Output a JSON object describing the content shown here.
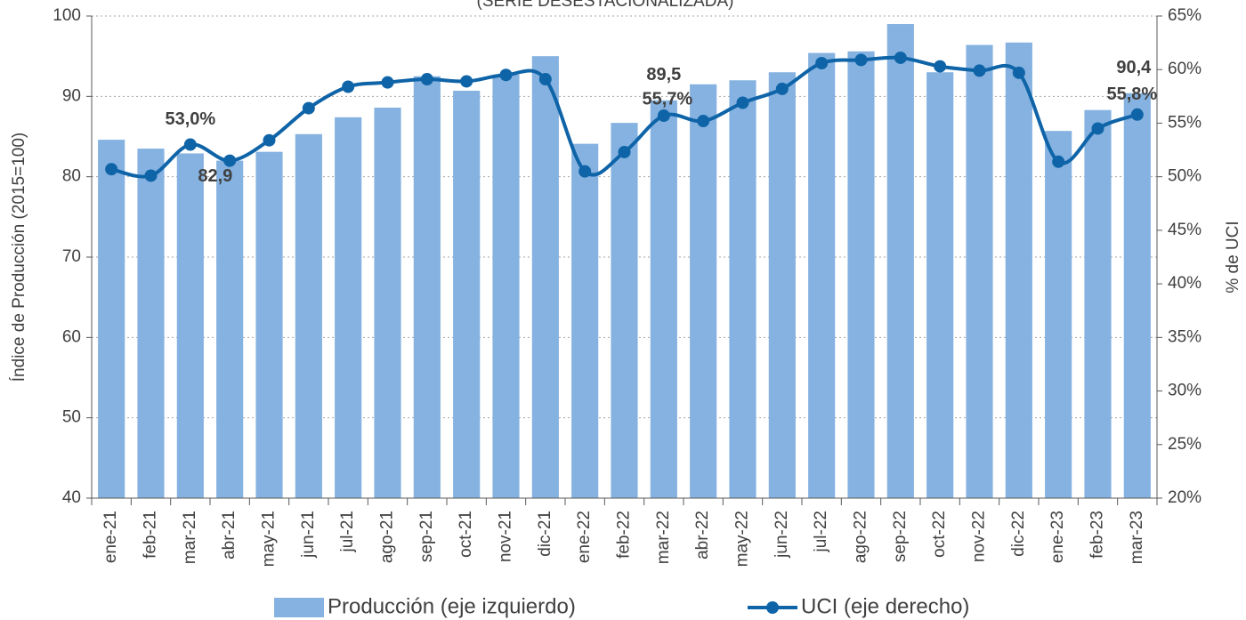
{
  "chart_data": {
    "type": "bar-line",
    "subtitle": "(SERIE DESESTACIONALIZADA)",
    "ylabel": "Índice de Producción (2015=100)",
    "y2label": "% de UCI",
    "categories": [
      "ene-21",
      "feb-21",
      "mar-21",
      "abr-21",
      "may-21",
      "jun-21",
      "jul-21",
      "ago-21",
      "sep-21",
      "oct-21",
      "nov-21",
      "dic-21",
      "ene-22",
      "feb-22",
      "mar-22",
      "abr-22",
      "may-22",
      "jun-22",
      "jul-22",
      "ago-22",
      "sep-22",
      "oct-22",
      "nov-22",
      "dic-22",
      "ene-23",
      "feb-23",
      "mar-23"
    ],
    "series": [
      {
        "name": "Producción (eje izquierdo)",
        "type": "bar",
        "color": "#85b2e0",
        "values": [
          84.6,
          83.5,
          82.9,
          82.0,
          83.1,
          85.3,
          87.4,
          88.6,
          92.5,
          90.7,
          92.7,
          95.0,
          84.1,
          86.7,
          89.5,
          91.5,
          92.0,
          93.0,
          95.4,
          95.6,
          99.0,
          93.0,
          96.4,
          96.7,
          85.7,
          88.3,
          90.4
        ],
        "value_labels": [
          null,
          null,
          "82,9",
          null,
          null,
          null,
          null,
          null,
          null,
          null,
          null,
          null,
          null,
          null,
          "89,5",
          null,
          null,
          null,
          null,
          null,
          null,
          null,
          null,
          null,
          null,
          null,
          "90,4"
        ]
      },
      {
        "name": "UCI (eje derecho)",
        "type": "line",
        "axis": "y2",
        "color": "#0f64a8",
        "values": [
          50.7,
          50.1,
          53.0,
          51.5,
          53.4,
          56.4,
          58.4,
          58.8,
          59.1,
          58.9,
          59.5,
          59.1,
          50.5,
          52.3,
          55.7,
          55.2,
          56.9,
          58.2,
          60.6,
          60.9,
          61.1,
          60.3,
          59.9,
          59.7,
          51.4,
          54.5,
          55.8
        ],
        "value_labels": [
          null,
          null,
          "53,0%",
          null,
          null,
          null,
          null,
          null,
          null,
          null,
          null,
          null,
          null,
          null,
          "55,7%",
          null,
          null,
          null,
          null,
          null,
          null,
          null,
          null,
          null,
          null,
          null,
          "55,8%"
        ]
      }
    ],
    "ylim": [
      40,
      100
    ],
    "yticks": [
      40,
      50,
      60,
      70,
      80,
      90,
      100
    ],
    "y2lim": [
      20,
      65
    ],
    "y2ticks": [
      {
        "value": 20,
        "label": "20%"
      },
      {
        "value": 25,
        "label": "25%"
      },
      {
        "value": 30,
        "label": "30%"
      },
      {
        "value": 35,
        "label": "35%"
      },
      {
        "value": 40,
        "label": "40%"
      },
      {
        "value": 45,
        "label": "45%"
      },
      {
        "value": 50,
        "label": "50%"
      },
      {
        "value": 55,
        "label": "55%"
      },
      {
        "value": 60,
        "label": "60%"
      },
      {
        "value": 65,
        "label": "65%"
      }
    ],
    "grid": true,
    "legend": "bottom"
  }
}
